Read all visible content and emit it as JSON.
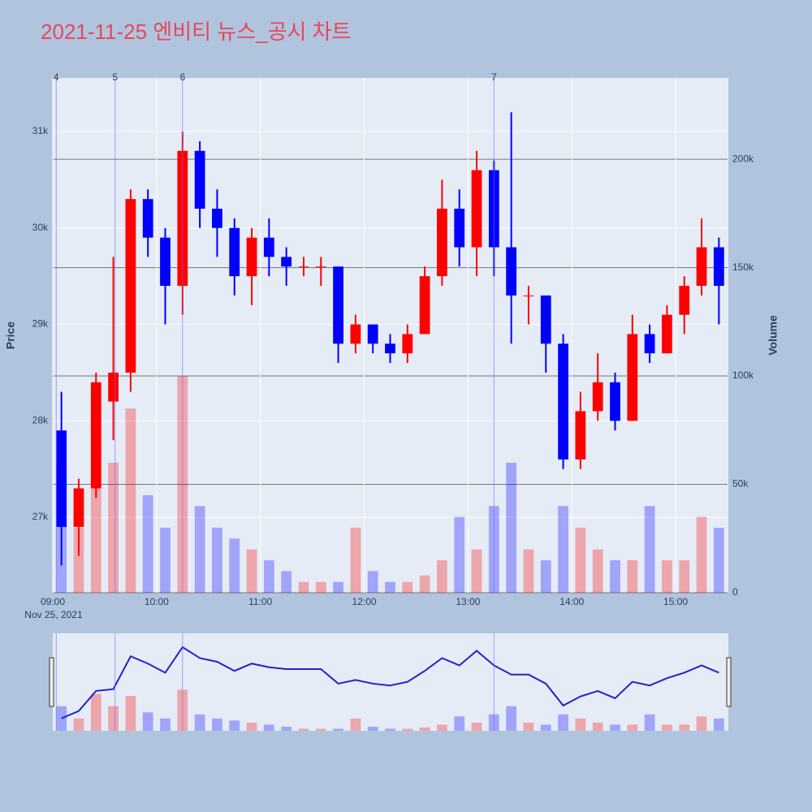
{
  "chart_data": {
    "type": "candlestick",
    "title": "2021-11-25 엔비티 뉴스_공시 차트",
    "x": [
      "09:00",
      "09:10",
      "09:20",
      "09:30",
      "09:40",
      "09:50",
      "10:00",
      "10:10",
      "10:20",
      "10:30",
      "10:40",
      "10:50",
      "11:00",
      "11:10",
      "11:20",
      "11:30",
      "11:40",
      "11:50",
      "12:00",
      "12:10",
      "12:20",
      "12:30",
      "12:40",
      "12:50",
      "13:00",
      "13:10",
      "13:20",
      "13:30",
      "13:40",
      "13:50",
      "14:00",
      "14:10",
      "14:20",
      "14:30",
      "14:40",
      "14:50",
      "15:00",
      "15:10",
      "15:20"
    ],
    "open": [
      27900,
      26900,
      27300,
      28200,
      28500,
      30300,
      29900,
      29400,
      30800,
      30200,
      30000,
      29500,
      29900,
      29700,
      29600,
      29600,
      29600,
      28800,
      29000,
      28800,
      28700,
      28900,
      29500,
      30200,
      29800,
      30600,
      29800,
      29300,
      29300,
      28800,
      27600,
      28100,
      28400,
      28000,
      28900,
      28700,
      29100,
      29400,
      29800
    ],
    "high": [
      28300,
      27400,
      28500,
      29700,
      30400,
      30400,
      30000,
      31000,
      30900,
      30400,
      30100,
      30000,
      30100,
      29800,
      29700,
      29700,
      29600,
      29100,
      29000,
      28900,
      29000,
      29600,
      30500,
      30400,
      30800,
      30700,
      31200,
      29400,
      29300,
      28900,
      28300,
      28700,
      28500,
      29100,
      29000,
      29200,
      29500,
      30100,
      29900
    ],
    "low": [
      26500,
      26600,
      27200,
      27800,
      28300,
      29700,
      29000,
      29100,
      30000,
      29700,
      29300,
      29200,
      29500,
      29400,
      29500,
      29400,
      28600,
      28700,
      28700,
      28600,
      28600,
      28900,
      29400,
      29600,
      29500,
      29500,
      28800,
      29000,
      28500,
      27500,
      27500,
      28000,
      27900,
      28000,
      28600,
      28700,
      28900,
      29300,
      29000
    ],
    "close": [
      26900,
      27300,
      28400,
      28500,
      30300,
      29900,
      29400,
      30800,
      30200,
      30000,
      29500,
      29900,
      29700,
      29600,
      29600,
      29600,
      28800,
      29000,
      28800,
      28700,
      28900,
      29500,
      30200,
      29800,
      30600,
      29800,
      29300,
      29300,
      28800,
      27600,
      28100,
      28400,
      28000,
      28900,
      28700,
      29100,
      29400,
      29800,
      29400
    ],
    "volume": [
      60000,
      30000,
      90000,
      60000,
      85000,
      45000,
      30000,
      100000,
      40000,
      30000,
      25000,
      20000,
      15000,
      10000,
      5000,
      5000,
      5000,
      30000,
      10000,
      5000,
      5000,
      8000,
      15000,
      35000,
      20000,
      40000,
      60000,
      20000,
      15000,
      40000,
      30000,
      20000,
      15000,
      15000,
      40000,
      15000,
      15000,
      35000,
      30000
    ],
    "up_color": "#ff0000",
    "down_color": "#0000ff",
    "xlim": [
      "09:00",
      "15:30"
    ],
    "xticks": [
      "09:00",
      "10:00",
      "11:00",
      "12:00",
      "13:00",
      "14:00",
      "15:00"
    ],
    "x_date_label": "Nov 25, 2021",
    "ylabel": "Price",
    "ylim": [
      26217,
      31556
    ],
    "yticks": [
      {
        "value": 27000,
        "label": "27k"
      },
      {
        "value": 28000,
        "label": "28k"
      },
      {
        "value": 29000,
        "label": "29k"
      },
      {
        "value": 30000,
        "label": "30k"
      },
      {
        "value": 31000,
        "label": "31k"
      }
    ],
    "y2label": "Volume",
    "y2lim": [
      0,
      237500
    ],
    "y2ticks": [
      0,
      {
        "value": 50000,
        "label": "50k"
      },
      {
        "value": 100000,
        "label": "100k"
      },
      {
        "value": 150000,
        "label": "150k"
      },
      {
        "value": 200000,
        "label": "200k"
      }
    ],
    "events": [
      {
        "x": "09:02",
        "label": "4"
      },
      {
        "x": "09:36",
        "label": "5"
      },
      {
        "x": "10:15",
        "label": "6"
      },
      {
        "x": "13:15",
        "label": "7"
      }
    ]
  }
}
